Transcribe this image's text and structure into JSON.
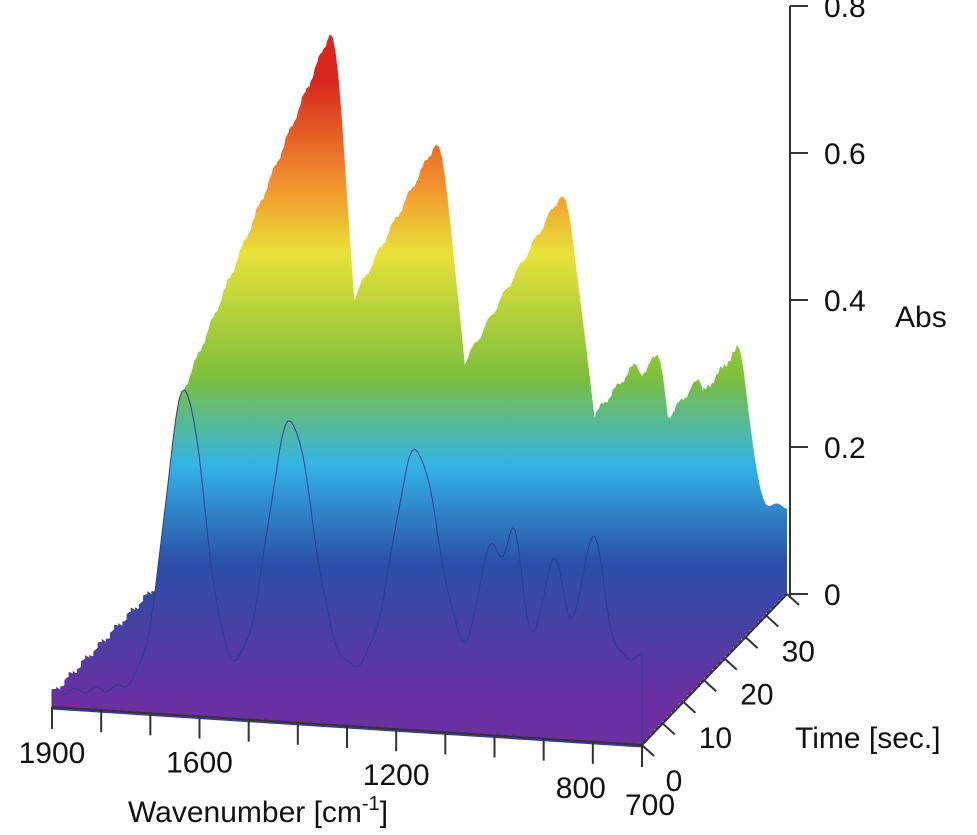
{
  "chart_data": {
    "type": "surface-3d",
    "title": "",
    "x_axis": {
      "label": "Wavenumber [cm",
      "label_sup": "-1",
      "label_close": "]",
      "range": [
        1900,
        700
      ],
      "ticks": [
        1900,
        1800,
        1700,
        1600,
        1500,
        1400,
        1300,
        1200,
        1100,
        1000,
        900,
        800,
        700
      ],
      "tick_labels": [
        {
          "value": 1900,
          "text": "1900"
        },
        {
          "value": 1600,
          "text": "1600"
        },
        {
          "value": 1200,
          "text": "1200"
        },
        {
          "value": 800,
          "text": "800"
        },
        {
          "value": 700,
          "text": "700"
        }
      ]
    },
    "time_axis": {
      "label": "Time [sec.]",
      "range": [
        0,
        35
      ],
      "ticks": [
        0,
        5,
        10,
        15,
        20,
        25,
        30,
        35
      ],
      "tick_labels": [
        {
          "value": 0,
          "text": "0"
        },
        {
          "value": 10,
          "text": "10"
        },
        {
          "value": 20,
          "text": "20"
        },
        {
          "value": 30,
          "text": "30"
        }
      ]
    },
    "z_axis": {
      "label": "Abs",
      "range": [
        0,
        0.8
      ],
      "ticks": [
        0,
        0.2,
        0.4,
        0.6,
        0.8
      ],
      "tick_labels": [
        {
          "value": 0,
          "text": "0"
        },
        {
          "value": 0.2,
          "text": "0.2"
        },
        {
          "value": 0.4,
          "text": "0.4"
        },
        {
          "value": 0.6,
          "text": "0.6"
        },
        {
          "value": 0.8,
          "text": "0.8"
        }
      ]
    },
    "peaks": [
      {
        "wavenumber": 1630,
        "abs_start": 0.4,
        "abs_end": 0.68,
        "width": 40
      },
      {
        "wavenumber": 1415,
        "abs_start": 0.35,
        "abs_end": 0.52,
        "width": 45
      },
      {
        "wavenumber": 1160,
        "abs_start": 0.3,
        "abs_end": 0.44,
        "width": 45
      },
      {
        "wavenumber": 1010,
        "abs_start": 0.16,
        "abs_end": 0.2,
        "width": 22
      },
      {
        "wavenumber": 960,
        "abs_start": 0.17,
        "abs_end": 0.2,
        "width": 18
      },
      {
        "wavenumber": 880,
        "abs_start": 0.14,
        "abs_end": 0.18,
        "width": 22
      },
      {
        "wavenumber": 800,
        "abs_start": 0.17,
        "abs_end": 0.22,
        "width": 22
      }
    ],
    "baseline": {
      "abs_at_1900": 0.02,
      "abs_at_700": 0.12
    },
    "colormap": [
      "#6a2fa0",
      "#2b4fa8",
      "#34b4e6",
      "#7cbf3c",
      "#e8e23a",
      "#f29a2e",
      "#d8261f"
    ]
  }
}
